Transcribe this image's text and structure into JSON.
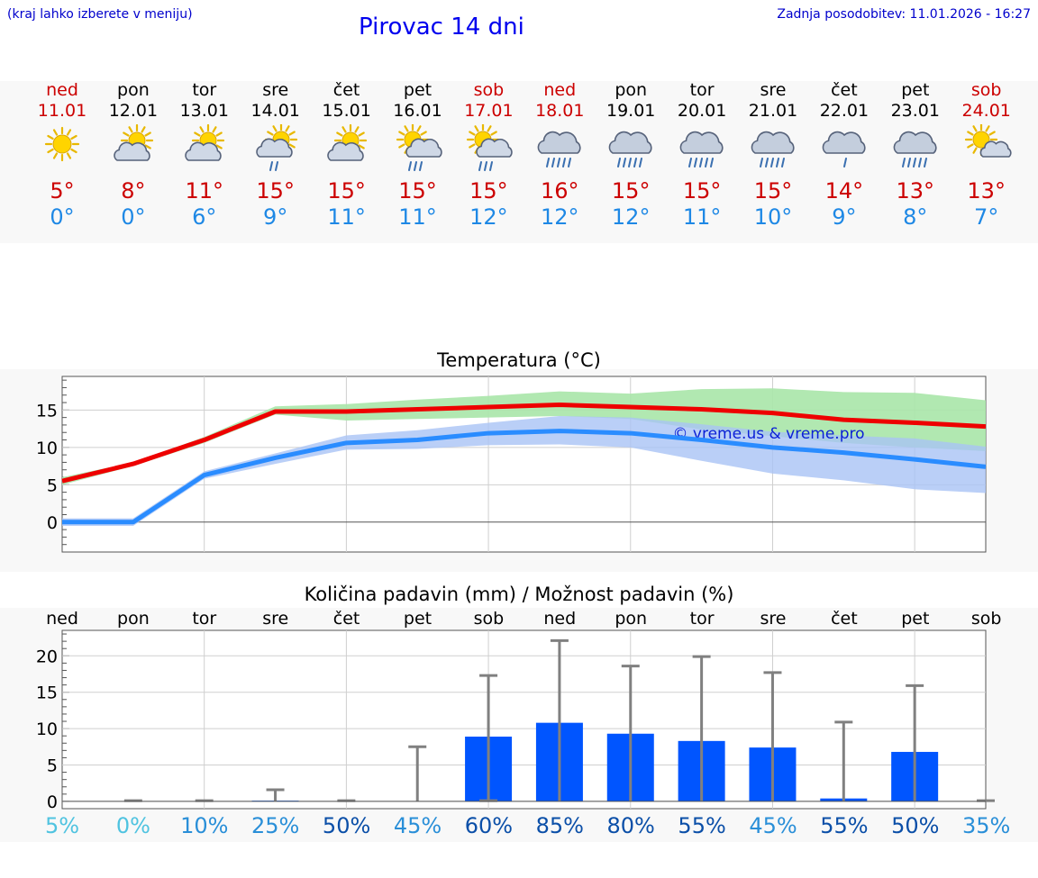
{
  "header": {
    "hint": "(kraj lahko izberete v meniju)",
    "title": "Pirovac 14 dni",
    "updated": "Zadnja posodobitev: 11.01.2026 - 16:27"
  },
  "colors": {
    "weekend": "#cc0000",
    "weekday": "#000000",
    "max_line": "#ee0000",
    "min_line": "#2a8cff",
    "max_band": "#a8e6a8",
    "min_band": "#a9c3f5",
    "bar": "#0055ff",
    "whisker": "#808080"
  },
  "days": [
    {
      "name": "ned",
      "date": "11.01",
      "weekend": true,
      "icon": "sun-icon",
      "max": "5°",
      "min": "0°"
    },
    {
      "name": "pon",
      "date": "12.01",
      "weekend": false,
      "icon": "partly-cloudy-icon",
      "max": "8°",
      "min": "0°"
    },
    {
      "name": "tor",
      "date": "13.01",
      "weekend": false,
      "icon": "partly-cloudy-icon",
      "max": "11°",
      "min": "6°"
    },
    {
      "name": "sre",
      "date": "14.01",
      "weekend": false,
      "icon": "sun-cloud-light-rain-icon",
      "max": "15°",
      "min": "9°"
    },
    {
      "name": "čet",
      "date": "15.01",
      "weekend": false,
      "icon": "partly-cloudy-icon",
      "max": "15°",
      "min": "11°"
    },
    {
      "name": "pet",
      "date": "16.01",
      "weekend": false,
      "icon": "sun-cloud-rain-icon",
      "max": "15°",
      "min": "11°"
    },
    {
      "name": "sob",
      "date": "17.01",
      "weekend": true,
      "icon": "sun-cloud-rain-icon",
      "max": "15°",
      "min": "12°"
    },
    {
      "name": "ned",
      "date": "18.01",
      "weekend": true,
      "icon": "rain-cloud-icon",
      "max": "16°",
      "min": "12°"
    },
    {
      "name": "pon",
      "date": "19.01",
      "weekend": false,
      "icon": "rain-cloud-icon",
      "max": "15°",
      "min": "12°"
    },
    {
      "name": "tor",
      "date": "20.01",
      "weekend": false,
      "icon": "rain-cloud-icon",
      "max": "15°",
      "min": "11°"
    },
    {
      "name": "sre",
      "date": "21.01",
      "weekend": false,
      "icon": "rain-cloud-icon",
      "max": "15°",
      "min": "10°"
    },
    {
      "name": "čet",
      "date": "22.01",
      "weekend": false,
      "icon": "light-rain-cloud-icon",
      "max": "14°",
      "min": "9°"
    },
    {
      "name": "pet",
      "date": "23.01",
      "weekend": false,
      "icon": "rain-cloud-icon",
      "max": "13°",
      "min": "8°"
    },
    {
      "name": "sob",
      "date": "24.01",
      "weekend": true,
      "icon": "sun-cloud-icon",
      "max": "13°",
      "min": "7°"
    }
  ],
  "chart_data": [
    {
      "type": "line",
      "title": "Temperatura (°C)",
      "watermark": "© vreme.us & vreme.pro",
      "x": [
        0,
        1,
        2,
        3,
        4,
        5,
        6,
        7,
        8,
        9,
        10,
        11,
        12,
        13
      ],
      "ylim": [
        -4,
        19.5
      ],
      "yticks": [
        0,
        5,
        10,
        15
      ],
      "series": [
        {
          "name": "max",
          "values": [
            5.5,
            7.8,
            11,
            14.8,
            14.8,
            15.1,
            15.4,
            15.7,
            15.4,
            15.1,
            14.6,
            13.7,
            13.3,
            12.8
          ],
          "band_low": [
            5,
            7.5,
            10.6,
            14.4,
            13.6,
            13.8,
            14,
            14.2,
            13.8,
            12.4,
            11.5,
            10.6,
            10,
            9.5
          ],
          "band_high": [
            6,
            8,
            11.4,
            15.5,
            15.8,
            16.4,
            16.9,
            17.5,
            17.2,
            17.8,
            17.9,
            17.4,
            17.3,
            16.3
          ]
        },
        {
          "name": "min",
          "values": [
            0,
            0,
            6.3,
            8.6,
            10.6,
            11,
            11.9,
            12.2,
            11.9,
            11,
            10,
            9.3,
            8.4,
            7.4
          ],
          "band_low": [
            -0.5,
            -0.5,
            5.8,
            7.8,
            9.7,
            9.8,
            10.3,
            10.4,
            10,
            8.2,
            6.5,
            5.6,
            4.4,
            3.9
          ],
          "band_high": [
            0.5,
            0.5,
            6.8,
            9.2,
            11.6,
            12.3,
            13.3,
            14.2,
            14,
            13.1,
            12.1,
            11.6,
            11.2,
            10.1
          ]
        }
      ]
    },
    {
      "type": "bar",
      "title": "Količina padavin (mm) / Možnost padavin (%)",
      "categories": [
        "ned",
        "pon",
        "tor",
        "sre",
        "čet",
        "pet",
        "sob",
        "ned",
        "pon",
        "tor",
        "sre",
        "čet",
        "pet",
        "sob"
      ],
      "ylim": [
        -1,
        23.5
      ],
      "yticks": [
        0,
        5,
        10,
        15,
        20
      ],
      "values": [
        0,
        0,
        0,
        0.1,
        0,
        0,
        8.9,
        10.8,
        9.3,
        8.3,
        7.4,
        0.4,
        6.8,
        0
      ],
      "whisker_high": [
        0,
        0.1,
        0.1,
        1.6,
        0.1,
        7.5,
        17.3,
        22.1,
        18.6,
        19.9,
        17.7,
        10.9,
        15.9,
        0.1
      ],
      "whisker_low": [
        0,
        0,
        0,
        0,
        0,
        0,
        0.1,
        0,
        0,
        0,
        0,
        0,
        0,
        0
      ],
      "chance": [
        "5%",
        "0%",
        "10%",
        "25%",
        "50%",
        "45%",
        "60%",
        "85%",
        "80%",
        "55%",
        "45%",
        "55%",
        "50%",
        "35%"
      ],
      "chance_colors": [
        "#4fc3e0",
        "#4fc3e0",
        "#2a8fd8",
        "#2a8fd8",
        "#0b4fa8",
        "#2a8fd8",
        "#0b4fa8",
        "#0b4fa8",
        "#0b4fa8",
        "#0b4fa8",
        "#2a8fd8",
        "#0b4fa8",
        "#0b4fa8",
        "#2a8fd8"
      ]
    }
  ]
}
